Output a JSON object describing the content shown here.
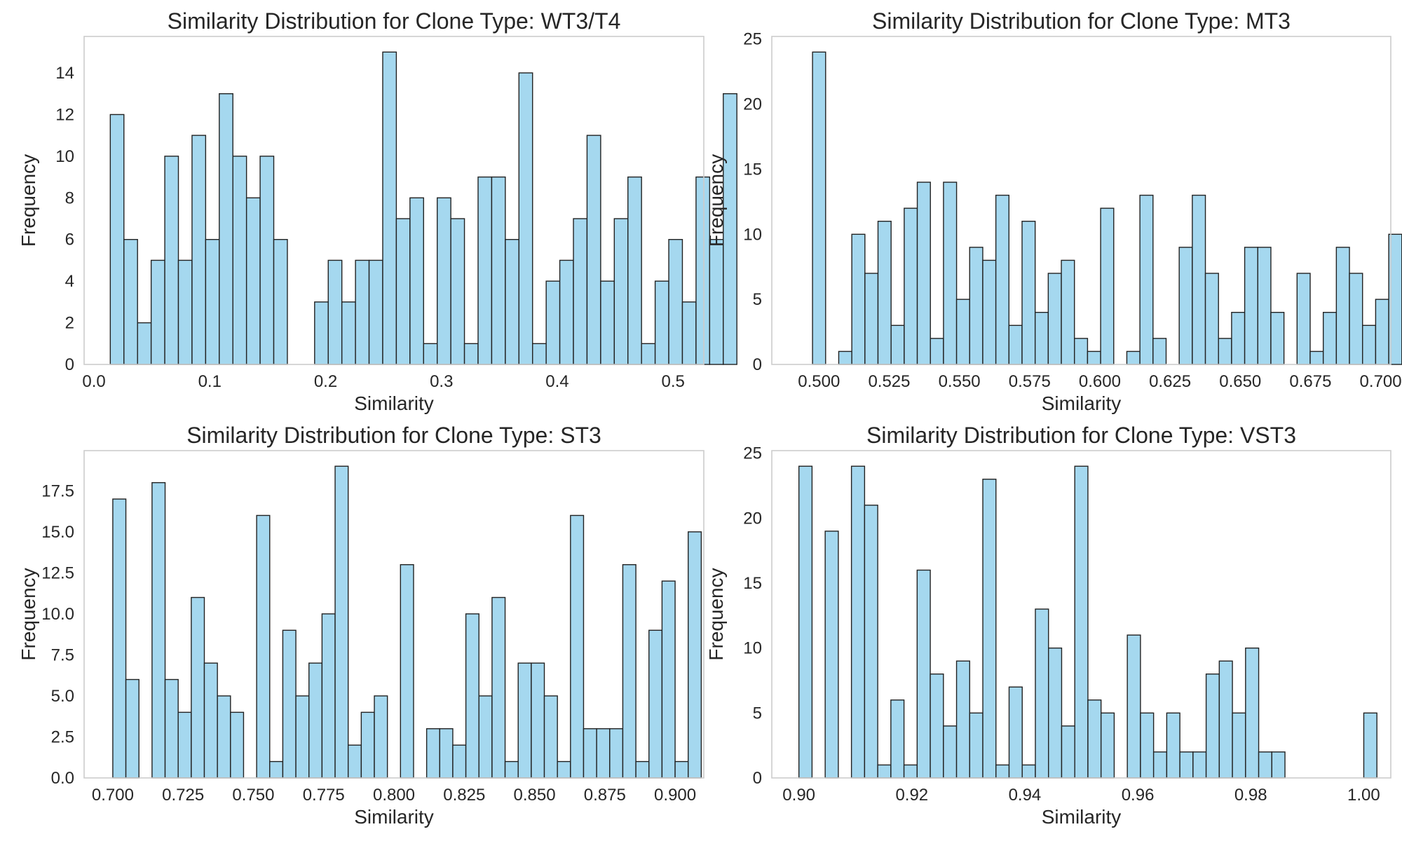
{
  "chart_data": [
    {
      "type": "bar",
      "title": "Similarity Distribution for Clone Type: WT3/T4",
      "xlabel": "Similarity",
      "ylabel": "Frequency",
      "xlim": [
        -0.0085,
        0.5265
      ],
      "ylim": [
        0,
        15.75
      ],
      "xticks": [
        0.0,
        0.1,
        0.2,
        0.3,
        0.4,
        0.5
      ],
      "xtick_labels": [
        "0.0",
        "0.1",
        "0.2",
        "0.3",
        "0.4",
        "0.5"
      ],
      "yticks": [
        0,
        2,
        4,
        6,
        8,
        10,
        12,
        14
      ],
      "ytick_labels": [
        "0",
        "2",
        "4",
        "6",
        "8",
        "10",
        "12",
        "14"
      ],
      "bin_start": 0.0141,
      "bin_width": 0.01176,
      "values": [
        12,
        6,
        2,
        5,
        10,
        5,
        11,
        6,
        13,
        10,
        8,
        10,
        6,
        0,
        0,
        3,
        5,
        3,
        5,
        5,
        15,
        7,
        8,
        1,
        8,
        7,
        1,
        9,
        9,
        6,
        14,
        1,
        4,
        5,
        7,
        11,
        4,
        7,
        9,
        1,
        4,
        6,
        3,
        9,
        6,
        13
      ],
      "bar_color": "#a5d8ef",
      "grid": false
    },
    {
      "type": "bar",
      "title": "Similarity Distribution for Clone Type: MT3",
      "xlabel": "Similarity",
      "ylabel": "Frequency",
      "xlim": [
        0.4832,
        0.7036
      ],
      "ylim": [
        0,
        25.2
      ],
      "xticks": [
        0.5,
        0.525,
        0.55,
        0.575,
        0.6,
        0.625,
        0.65,
        0.675,
        0.7
      ],
      "xtick_labels": [
        "0.500",
        "0.525",
        "0.550",
        "0.575",
        "0.600",
        "0.625",
        "0.650",
        "0.675",
        "0.700"
      ],
      "yticks": [
        0,
        5,
        10,
        15,
        20,
        25
      ],
      "ytick_labels": [
        "0",
        "5",
        "10",
        "15",
        "20",
        "25"
      ],
      "bin_start": 0.4977,
      "bin_width": 0.004663,
      "values": [
        24,
        0,
        1,
        10,
        7,
        11,
        3,
        12,
        14,
        2,
        14,
        5,
        9,
        8,
        13,
        3,
        11,
        4,
        7,
        8,
        2,
        1,
        12,
        0,
        1,
        13,
        2,
        0,
        9,
        13,
        7,
        2,
        4,
        9,
        9,
        4,
        0,
        7,
        1,
        4,
        9,
        7,
        3,
        5,
        10
      ],
      "bar_color": "#a5d8ef",
      "grid": false
    },
    {
      "type": "bar",
      "title": "Similarity Distribution for Clone Type: ST3",
      "xlabel": "Similarity",
      "ylabel": "Frequency",
      "xlim": [
        0.6898,
        0.9102
      ],
      "ylim": [
        0,
        19.95
      ],
      "xticks": [
        0.7,
        0.725,
        0.75,
        0.775,
        0.8,
        0.825,
        0.85,
        0.875,
        0.9
      ],
      "xtick_labels": [
        "0.700",
        "0.725",
        "0.750",
        "0.775",
        "0.800",
        "0.825",
        "0.850",
        "0.875",
        "0.900"
      ],
      "yticks": [
        0,
        2.5,
        5,
        7.5,
        10,
        12.5,
        15,
        17.5
      ],
      "ytick_labels": [
        "0.0",
        "2.5",
        "5.0",
        "7.5",
        "10.0",
        "12.5",
        "15.0",
        "17.5"
      ],
      "bin_start": 0.7,
      "bin_width": 0.004651,
      "values": [
        17,
        6,
        0,
        18,
        6,
        4,
        11,
        7,
        5,
        4,
        0,
        16,
        1,
        9,
        5,
        7,
        10,
        19,
        2,
        4,
        5,
        0,
        13,
        0,
        3,
        3,
        2,
        10,
        5,
        11,
        1,
        7,
        7,
        5,
        1,
        16,
        3,
        3,
        3,
        13,
        1,
        9,
        12,
        1,
        15
      ],
      "bar_color": "#a5d8ef",
      "grid": false
    },
    {
      "type": "bar",
      "title": "Similarity Distribution for Clone Type: VST3",
      "xlabel": "Similarity",
      "ylabel": "Frequency",
      "xlim": [
        0.8952,
        1.0048
      ],
      "ylim": [
        0,
        25.2
      ],
      "xticks": [
        0.9,
        0.92,
        0.94,
        0.96,
        0.98,
        1.0
      ],
      "xtick_labels": [
        "0.90",
        "0.92",
        "0.94",
        "0.96",
        "0.98",
        "1.00"
      ],
      "yticks": [
        0,
        5,
        10,
        15,
        20,
        25
      ],
      "ytick_labels": [
        "0",
        "5",
        "10",
        "15",
        "20",
        "25"
      ],
      "bin_start": 0.9,
      "bin_width": 0.002326,
      "values": [
        24,
        0,
        19,
        0,
        24,
        21,
        1,
        6,
        1,
        16,
        8,
        4,
        9,
        5,
        23,
        1,
        7,
        1,
        13,
        10,
        4,
        24,
        6,
        5,
        0,
        11,
        5,
        2,
        5,
        2,
        2,
        8,
        9,
        5,
        10,
        2,
        2,
        0,
        0,
        0,
        0,
        0,
        0,
        5
      ],
      "bar_color": "#a5d8ef",
      "grid": false
    }
  ]
}
